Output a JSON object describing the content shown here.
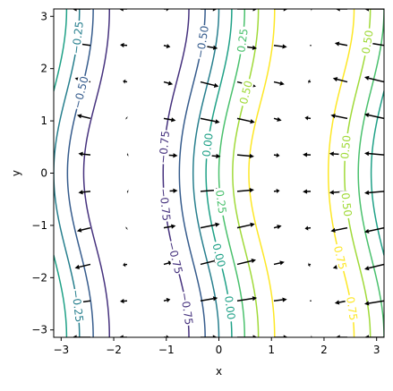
{
  "chart_data": {
    "type": "contour",
    "title": "",
    "xlabel": "x",
    "ylabel": "y",
    "xlim": [
      -3.14159,
      3.14159
    ],
    "ylim": [
      -3.14159,
      3.14159
    ],
    "xticks": [
      -3,
      -2,
      -1,
      0,
      1,
      2,
      3
    ],
    "yticks": [
      -3,
      -2,
      -1,
      0,
      1,
      2,
      3
    ],
    "grid": false,
    "function": "sin(x) + cos(x)*cos(y)/4",
    "contour_levels": [
      -0.75,
      -0.5,
      -0.25,
      0.0,
      0.25,
      0.5,
      0.75
    ],
    "contour_labels": [
      "−0.75",
      "−0.50",
      "−0.25",
      "0.00",
      "0.25",
      "0.50",
      "0.75"
    ],
    "colormap": [
      "#440154",
      "#443983",
      "#31688e",
      "#21918c",
      "#35b779",
      "#90d743",
      "#fde725"
    ],
    "level_colors": [
      "#46327e",
      "#365c8d",
      "#277f8e",
      "#1fa187",
      "#4ac16d",
      "#a0da39",
      "#fde725"
    ],
    "quiver": {
      "field": "gradient of the contoured function",
      "grid_x": [
        -3.14159,
        -2.44346,
        -1.74533,
        -1.0472,
        -0.34907,
        0.34907,
        1.0472,
        1.74533,
        2.44346,
        3.14159
      ],
      "grid_y": [
        -3.14159,
        -2.44346,
        -1.74533,
        -1.0472,
        -0.34907,
        0.34907,
        1.0472,
        1.74533,
        2.44346,
        3.14159
      ],
      "color": "#000000"
    }
  }
}
